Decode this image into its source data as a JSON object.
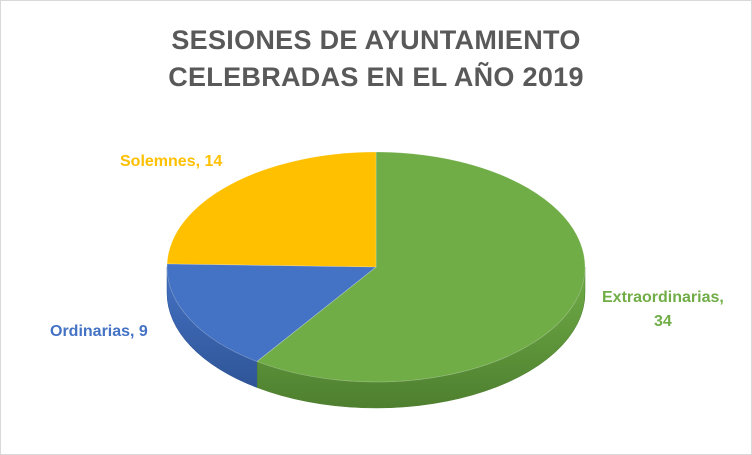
{
  "chart_data": {
    "type": "pie",
    "title_lines": [
      "SESIONES DE AYUNTAMIENTO",
      "CELEBRADAS EN EL AÑO 2019"
    ],
    "slices": [
      {
        "name": "Extraordinarias",
        "value": 34,
        "color": "#70AD47",
        "side_color": "#4E7F2F",
        "label_lines": [
          "Extraordinarias,",
          "34"
        ]
      },
      {
        "name": "Ordinarias",
        "value": 9,
        "color": "#4472C4",
        "side_color": "#2F5597",
        "label_lines": [
          "Ordinarias,  9"
        ]
      },
      {
        "name": "Solemnes",
        "value": 14,
        "color": "#FFC000",
        "side_color": "#BF9000",
        "label_lines": [
          "Solemnes, 14"
        ]
      }
    ],
    "start": "top, clockwise",
    "style": "3d-pie",
    "legend": "none"
  }
}
